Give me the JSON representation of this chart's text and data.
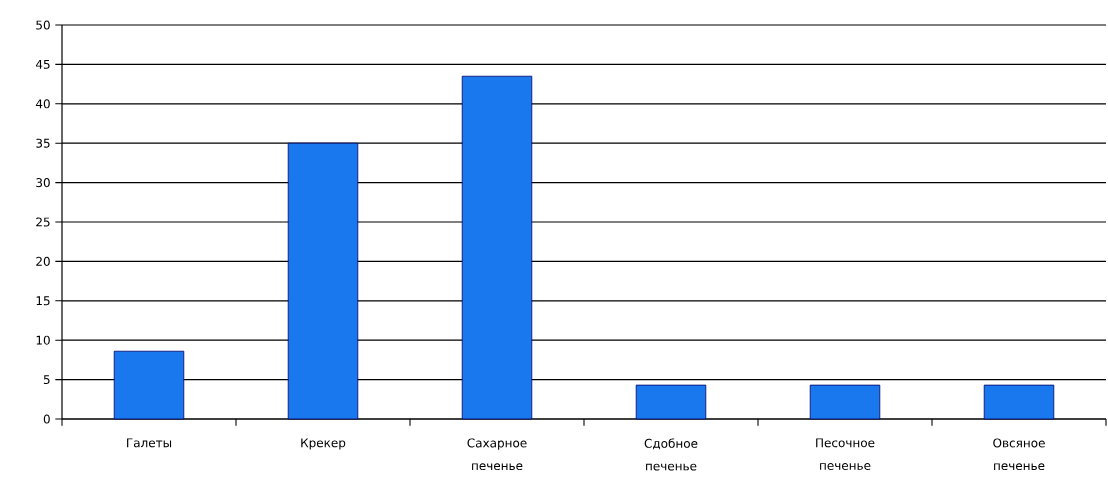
{
  "chart_data": {
    "type": "bar",
    "categories": [
      "Галеты",
      "Крекер",
      "Сахарное печенье",
      "Сдобное печенье",
      "Песочное печенье",
      "Овсяное печенье"
    ],
    "values": [
      8.6,
      35,
      43.5,
      4.3,
      4.3,
      4.3
    ],
    "color": "#1a78ee",
    "ylim": [
      0,
      50
    ],
    "yticks": [
      0,
      5,
      10,
      15,
      20,
      25,
      30,
      35,
      40,
      45,
      50
    ],
    "grid": "y"
  }
}
